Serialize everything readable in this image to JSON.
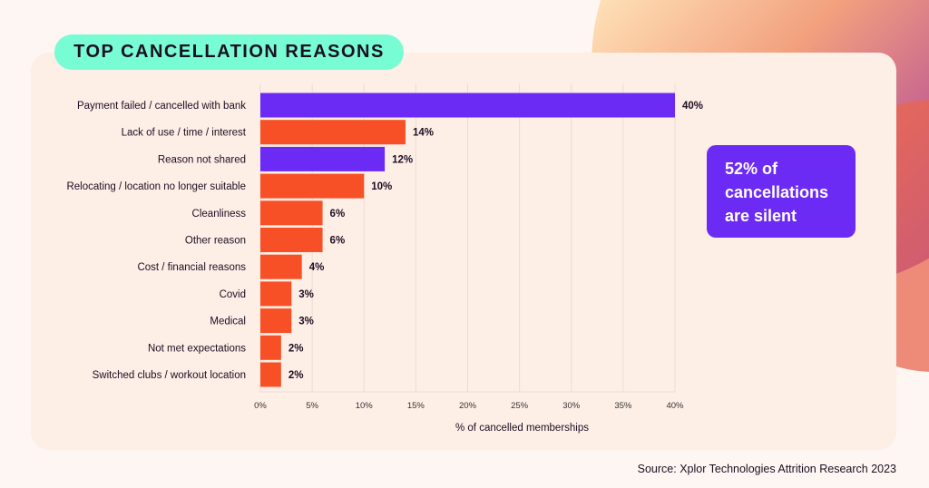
{
  "chart_data": {
    "type": "bar",
    "orientation": "horizontal",
    "title": "TOP CANCELLATION REASONS",
    "xlabel": "% of cancelled memberships",
    "xlim": [
      0,
      40
    ],
    "xticks": [
      "0%",
      "5%",
      "10%",
      "15%",
      "20%",
      "25%",
      "30%",
      "35%",
      "40%"
    ],
    "grid": true,
    "categories": [
      "Payment failed / cancelled with bank",
      "Lack of use / time / interest",
      "Reason not shared",
      "Relocating / location no longer suitable",
      "Cleanliness",
      "Other reason",
      "Cost / financial reasons",
      "Covid",
      "Medical",
      "Not met expectations",
      "Switched clubs / workout location"
    ],
    "values": [
      40,
      14,
      12,
      10,
      6,
      6,
      4,
      3,
      3,
      2,
      2
    ],
    "labels": [
      "40%",
      "14%",
      "12%",
      "10%",
      "6%",
      "6%",
      "4%",
      "3%",
      "3%",
      "2%",
      "2%"
    ],
    "highlight": [
      true,
      false,
      true,
      false,
      false,
      false,
      false,
      false,
      false,
      false,
      false
    ],
    "colors": {
      "highlight": "#6c2bf5",
      "default": "#f75027",
      "grid": "#ecdcd4"
    }
  },
  "callout": {
    "lines": [
      "52% of",
      "cancellations",
      "are silent"
    ]
  },
  "source": "Source: Xplor Technologies Attrition Research 2023"
}
